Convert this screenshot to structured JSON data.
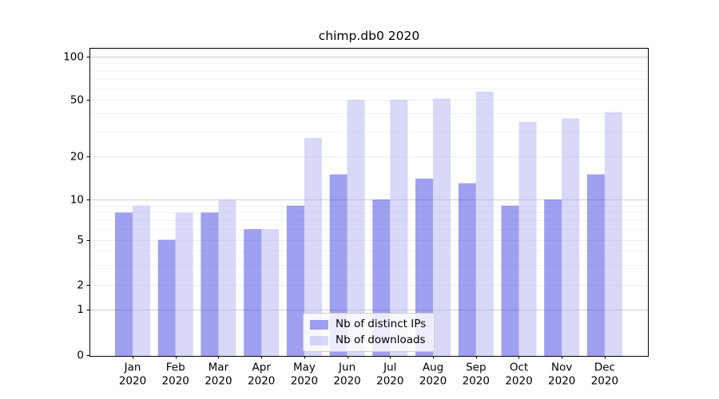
{
  "chart_data": {
    "type": "bar",
    "title": "chimp.db0 2020",
    "xlabel": "",
    "ylabel": "",
    "categories": [
      "Jan",
      "Feb",
      "Mar",
      "Apr",
      "May",
      "Jun",
      "Jul",
      "Aug",
      "Sep",
      "Oct",
      "Nov",
      "Dec"
    ],
    "category_year": "2020",
    "series": [
      {
        "name": "Nb of distinct IPs",
        "color": "#4141e1",
        "rendered_color": "#a1a1f0",
        "values": [
          8,
          5,
          8,
          6,
          9,
          15,
          10,
          14,
          13,
          9,
          10,
          15
        ]
      },
      {
        "name": "Nb of downloads",
        "color": "#b1b1f1",
        "rendered_color": "#d8d8f8",
        "values": [
          9,
          8,
          10,
          6,
          27,
          50,
          50,
          51,
          57,
          35,
          37,
          41
        ]
      }
    ],
    "fill_opacity": 0.5,
    "y_axis": {
      "scale": "symlog",
      "tick_labels": [
        100,
        50,
        20,
        10,
        5,
        2,
        1,
        0
      ],
      "minor_gridlines": [
        3,
        4,
        6,
        7,
        8,
        9,
        30,
        40,
        60,
        70,
        80,
        90
      ],
      "ylim": [
        0,
        115
      ]
    },
    "legend": {
      "position": "lower-center"
    },
    "grid": true,
    "colors": {
      "grid_decade": "#cccccc",
      "grid_major": "#ececec",
      "grid_minor": "#f3f3f3",
      "axis": "#000000",
      "text": "#000000",
      "background": "#ffffff"
    }
  }
}
